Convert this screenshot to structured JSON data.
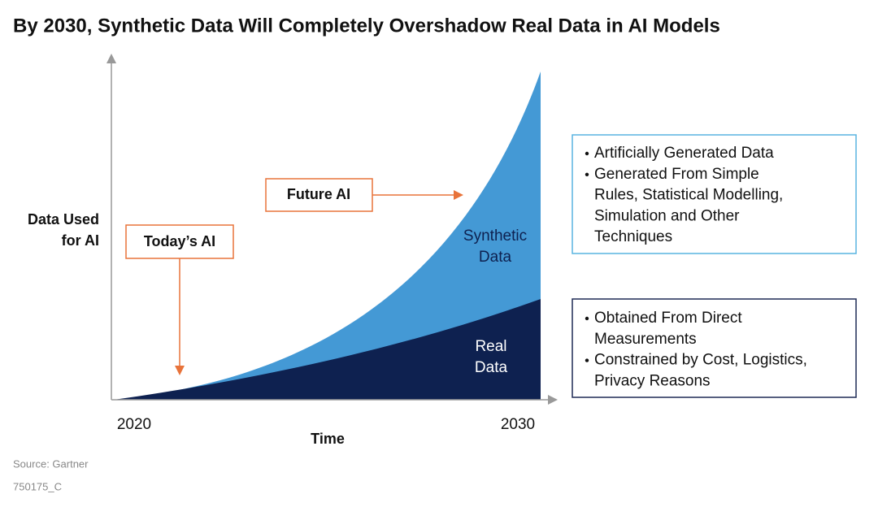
{
  "title": "By 2030,  Synthetic Data Will Completely Overshadow Real Data in AI Models",
  "y_axis_label": [
    "Data Used",
    "for AI"
  ],
  "x_axis": {
    "label": "Time",
    "start": "2020",
    "end": "2030"
  },
  "callouts": {
    "today": "Today’s AI",
    "future": "Future AI"
  },
  "areas": {
    "synthetic": [
      "Synthetic",
      "Data"
    ],
    "real": [
      "Real",
      "Data"
    ]
  },
  "synthetic_box": {
    "bullets": [
      [
        "Artificially Generated Data"
      ],
      [
        "Generated From Simple",
        "Rules, Statistical Modelling,",
        "Simulation and Other",
        "Techniques"
      ]
    ]
  },
  "real_box": {
    "bullets": [
      [
        "Obtained From Direct",
        "Measurements"
      ],
      [
        "Constrained by Cost, Logistics,",
        "Privacy Reasons"
      ]
    ]
  },
  "footer": {
    "source": "Source: Gartner",
    "id": "750175_C"
  }
}
